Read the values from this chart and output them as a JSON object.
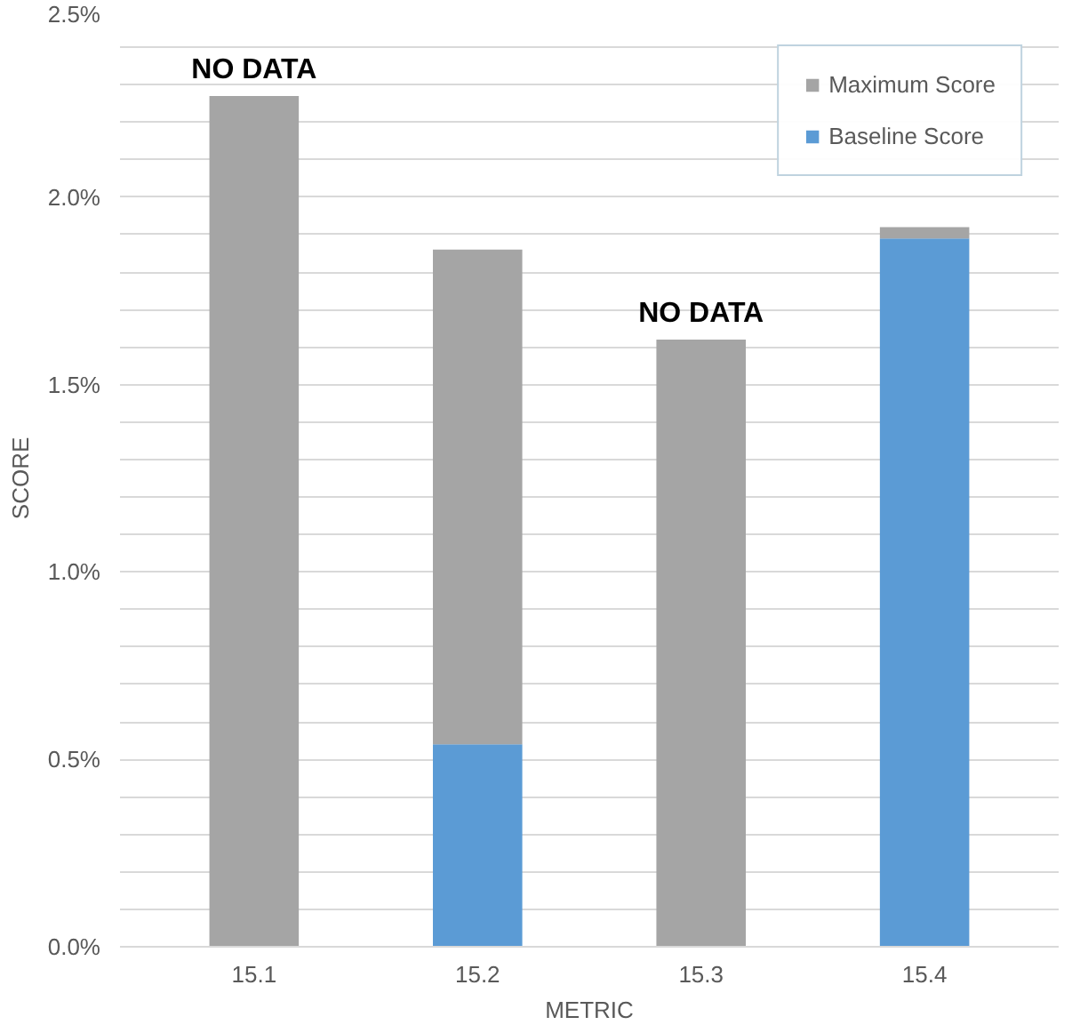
{
  "chart_data": {
    "type": "bar",
    "stacked": true,
    "xlabel": "METRIC",
    "ylabel": "SCORE",
    "categories": [
      "15.1",
      "15.2",
      "15.3",
      "15.4"
    ],
    "series": [
      {
        "name": "Baseline Score",
        "color": "#5b9bd5",
        "values": [
          null,
          0.54,
          null,
          1.89
        ]
      },
      {
        "name": "Maximum Score",
        "color": "#a5a5a5",
        "values": [
          2.27,
          1.32,
          1.62,
          0.03
        ]
      }
    ],
    "ylim": [
      0,
      2.5
    ],
    "yticks": [
      {
        "value": 0,
        "label": "0.0%"
      },
      {
        "value": 0.1,
        "label": null
      },
      {
        "value": 0.2,
        "label": null
      },
      {
        "value": 0.3,
        "label": null
      },
      {
        "value": 0.4,
        "label": null
      },
      {
        "value": 0.5,
        "label": "0.5%"
      },
      {
        "value": 0.6,
        "label": null
      },
      {
        "value": 0.7,
        "label": null
      },
      {
        "value": 0.8,
        "label": null
      },
      {
        "value": 0.9,
        "label": null
      },
      {
        "value": 1.0,
        "label": "1.0%"
      },
      {
        "value": 1.1,
        "label": null
      },
      {
        "value": 1.2,
        "label": null
      },
      {
        "value": 1.3,
        "label": null
      },
      {
        "value": 1.4,
        "label": null
      },
      {
        "value": 1.5,
        "label": "1.5%"
      },
      {
        "value": 1.6,
        "label": null
      },
      {
        "value": 1.7,
        "label": null
      },
      {
        "value": 1.8,
        "label": null
      },
      {
        "value": 1.9,
        "label": null
      },
      {
        "value": 2.0,
        "label": "2.0%"
      },
      {
        "value": 2.1,
        "label": null
      },
      {
        "value": 2.2,
        "label": null
      },
      {
        "value": 2.3,
        "label": null
      },
      {
        "value": 2.4,
        "label": null
      },
      {
        "value": 2.5,
        "label": "2.5%"
      }
    ],
    "annotations": [
      {
        "text": "NO DATA",
        "x": "15.1",
        "y": 2.27
      },
      {
        "text": "NO DATA",
        "x": "15.3",
        "y": 1.62
      }
    ],
    "grid": "y",
    "legend": "top right"
  }
}
